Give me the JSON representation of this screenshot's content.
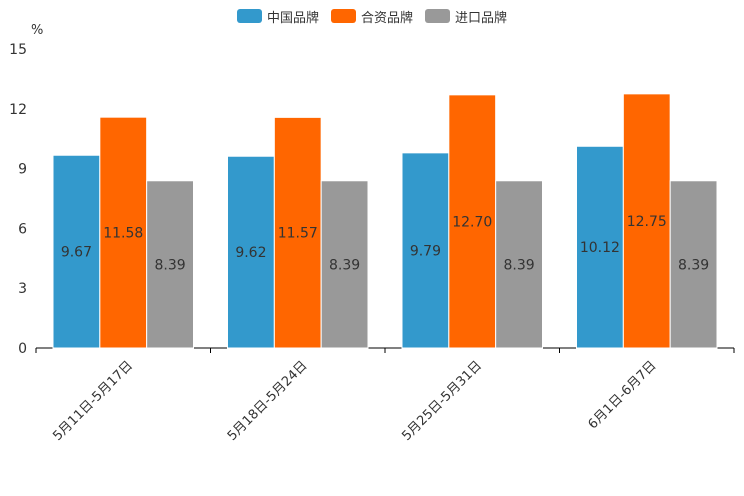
{
  "chart_data": {
    "type": "bar",
    "title": "",
    "unit": "%",
    "xlabel": "",
    "ylabel": "%",
    "ylim": [
      0,
      15
    ],
    "yticks": [
      0,
      3,
      6,
      9,
      12,
      15
    ],
    "grid": false,
    "legend_position": "top-center",
    "categories": [
      "5月11日-5月17日",
      "5月18日-5月24日",
      "5月25日-5月31日",
      "6月1日-6月7日"
    ],
    "series": [
      {
        "name": "中国品牌",
        "color": "#3399CC",
        "values": [
          9.67,
          9.62,
          9.79,
          10.12
        ],
        "labels": [
          "9.67",
          "9.62",
          "9.79",
          "10.12"
        ]
      },
      {
        "name": "合资品牌",
        "color": "#FF6600",
        "values": [
          11.58,
          11.57,
          12.7,
          12.75
        ],
        "labels": [
          "11.58",
          "11.57",
          "12.70",
          "12.75"
        ]
      },
      {
        "name": "进口品牌",
        "color": "#999999",
        "values": [
          8.39,
          8.39,
          8.39,
          8.39
        ],
        "labels": [
          "8.39",
          "8.39",
          "8.39",
          "8.39"
        ]
      }
    ]
  }
}
